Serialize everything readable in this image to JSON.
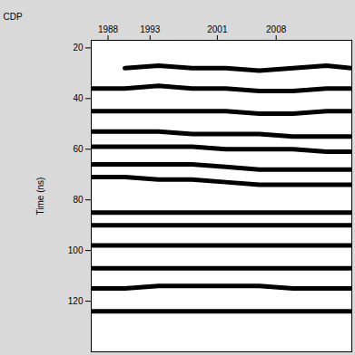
{
  "chart_data": {
    "type": "line",
    "x_label": "CDP",
    "y_label": "Time (ns)",
    "x": [
      1986,
      1990,
      1994,
      1998,
      2002,
      2006,
      2010,
      2014,
      2017
    ],
    "series": [
      {
        "color": "#000000",
        "values": [
          null,
          28,
          27,
          28,
          28,
          29,
          28,
          27,
          28
        ]
      },
      {
        "color": "#000000",
        "values": [
          36,
          36,
          35,
          36,
          36,
          37,
          37,
          36,
          36
        ]
      },
      {
        "color": "#000000",
        "values": [
          45,
          45,
          45,
          45,
          45,
          46,
          46,
          45,
          45
        ]
      },
      {
        "color": "#000000",
        "values": [
          53,
          53,
          53,
          54,
          54,
          54,
          55,
          55,
          55
        ]
      },
      {
        "color": "#000000",
        "values": [
          59,
          59,
          59,
          59,
          60,
          60,
          60,
          61,
          61
        ]
      },
      {
        "color": "#000000",
        "values": [
          66,
          66,
          66,
          66,
          67,
          68,
          68,
          68,
          68
        ]
      },
      {
        "color": "#000000",
        "values": [
          71,
          71,
          72,
          72,
          73,
          74,
          74,
          74,
          74
        ]
      },
      {
        "color": "#000000",
        "values": [
          85,
          85,
          85,
          85,
          85,
          85,
          85,
          85,
          85
        ]
      },
      {
        "color": "#000000",
        "values": [
          90,
          90,
          90,
          90,
          90,
          90,
          90,
          90,
          90
        ]
      },
      {
        "color": "#000000",
        "values": [
          98,
          98,
          98,
          98,
          98,
          98,
          98,
          98,
          98
        ]
      },
      {
        "color": "#000000",
        "values": [
          107,
          107,
          107,
          107,
          107,
          107,
          107,
          107,
          107
        ]
      },
      {
        "color": "#000000",
        "values": [
          115,
          115,
          114,
          114,
          114,
          114,
          115,
          115,
          115
        ]
      },
      {
        "color": "#000000",
        "values": [
          124,
          124,
          124,
          124,
          124,
          124,
          124,
          124,
          124
        ]
      }
    ],
    "xlim": [
      1986,
      2017
    ],
    "xticks": [
      1988,
      1993,
      2001,
      2008
    ],
    "ylim": [
      17,
      140
    ],
    "yticks": [
      20,
      40,
      60,
      80,
      100,
      120
    ],
    "grid": false
  }
}
